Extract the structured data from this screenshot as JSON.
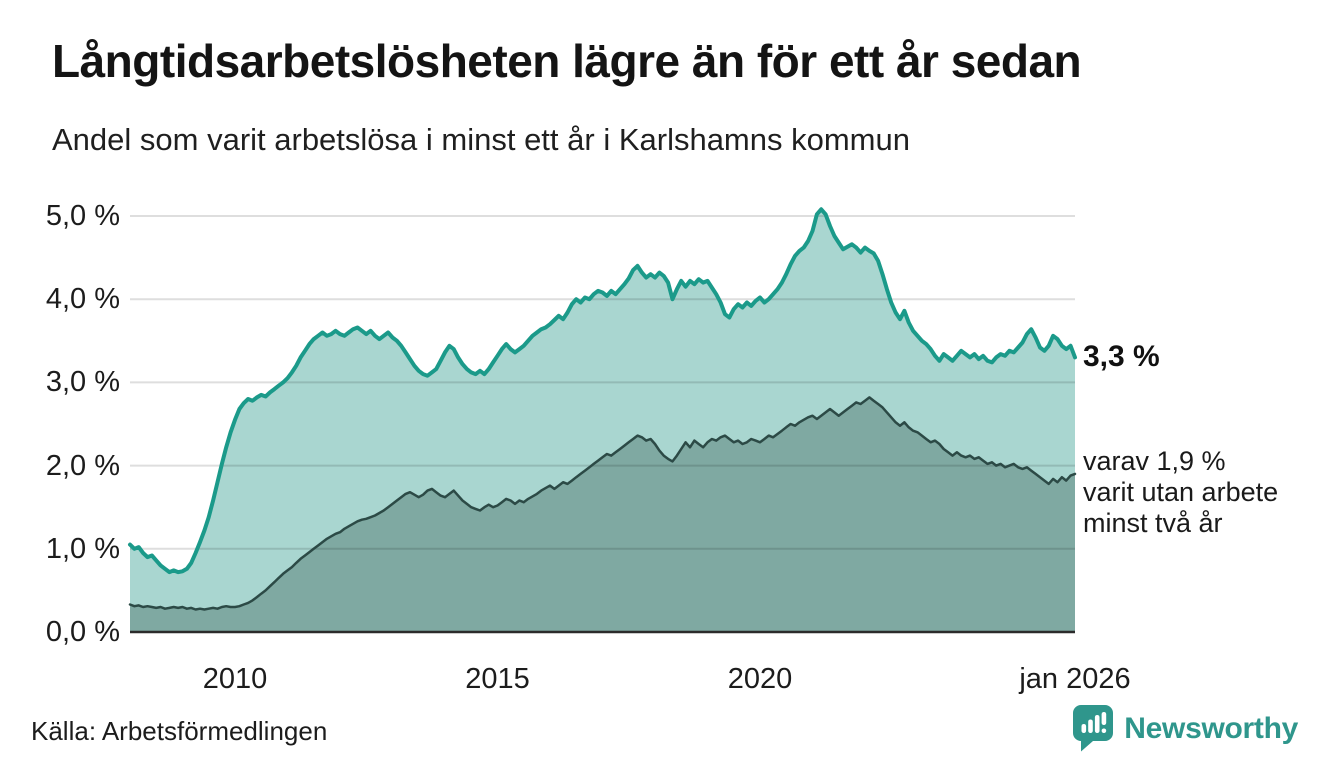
{
  "header": {},
  "chart_data": {
    "type": "area",
    "title": "Långtidsarbetslösheten lägre än för ett år sedan",
    "subtitle": "Andel som varit arbetslösa i minst ett år i Karlshamns kommun",
    "x_start": 2008.0,
    "x_step_years": 0.0833333333,
    "xlim": [
      2008.0,
      2026.0
    ],
    "ylim": [
      0.0,
      5.0
    ],
    "grid": true,
    "yticks": [
      {
        "v": 5.0,
        "label": "5,0 %"
      },
      {
        "v": 4.0,
        "label": "4,0 %"
      },
      {
        "v": 3.0,
        "label": "3,0 %"
      },
      {
        "v": 2.0,
        "label": "2,0 %"
      },
      {
        "v": 1.0,
        "label": "1,0 %"
      },
      {
        "v": 0.0,
        "label": "0,0 %"
      }
    ],
    "xticks": [
      {
        "x": 2010,
        "label": "2010"
      },
      {
        "x": 2015,
        "label": "2015"
      },
      {
        "x": 2020,
        "label": "2020"
      },
      {
        "x": 2026,
        "label": "jan 2026"
      }
    ],
    "series": [
      {
        "name": "Andel som varit arbetslösa minst ett år",
        "line_color": "#1b9a8a",
        "fill_color": "#a9d6d0",
        "line_width": 4,
        "end_value": 3.3,
        "values": [
          1.05,
          1.0,
          1.02,
          0.95,
          0.9,
          0.92,
          0.86,
          0.8,
          0.76,
          0.72,
          0.74,
          0.72,
          0.73,
          0.76,
          0.83,
          0.95,
          1.08,
          1.22,
          1.38,
          1.58,
          1.8,
          2.02,
          2.22,
          2.4,
          2.55,
          2.68,
          2.75,
          2.8,
          2.78,
          2.82,
          2.85,
          2.83,
          2.88,
          2.92,
          2.96,
          3.0,
          3.05,
          3.12,
          3.2,
          3.3,
          3.38,
          3.46,
          3.52,
          3.56,
          3.6,
          3.56,
          3.58,
          3.62,
          3.58,
          3.56,
          3.6,
          3.64,
          3.66,
          3.62,
          3.58,
          3.62,
          3.56,
          3.52,
          3.56,
          3.6,
          3.54,
          3.5,
          3.44,
          3.36,
          3.28,
          3.2,
          3.14,
          3.1,
          3.08,
          3.12,
          3.16,
          3.26,
          3.36,
          3.44,
          3.4,
          3.3,
          3.22,
          3.16,
          3.12,
          3.1,
          3.14,
          3.1,
          3.16,
          3.24,
          3.32,
          3.4,
          3.46,
          3.4,
          3.36,
          3.4,
          3.44,
          3.5,
          3.56,
          3.6,
          3.64,
          3.66,
          3.7,
          3.75,
          3.8,
          3.76,
          3.84,
          3.94,
          4.0,
          3.96,
          4.02,
          4.0,
          4.06,
          4.1,
          4.08,
          4.04,
          4.1,
          4.06,
          4.12,
          4.18,
          4.25,
          4.35,
          4.4,
          4.32,
          4.26,
          4.3,
          4.26,
          4.32,
          4.28,
          4.2,
          4.0,
          4.12,
          4.22,
          4.15,
          4.22,
          4.18,
          4.24,
          4.2,
          4.22,
          4.14,
          4.06,
          3.96,
          3.82,
          3.78,
          3.88,
          3.94,
          3.9,
          3.96,
          3.92,
          3.98,
          4.02,
          3.96,
          4.0,
          4.06,
          4.12,
          4.2,
          4.3,
          4.42,
          4.52,
          4.58,
          4.62,
          4.7,
          4.82,
          5.02,
          5.08,
          5.02,
          4.88,
          4.76,
          4.68,
          4.6,
          4.63,
          4.66,
          4.62,
          4.56,
          4.62,
          4.58,
          4.55,
          4.46,
          4.3,
          4.12,
          3.96,
          3.84,
          3.76,
          3.86,
          3.72,
          3.62,
          3.56,
          3.5,
          3.46,
          3.4,
          3.32,
          3.26,
          3.34,
          3.3,
          3.26,
          3.32,
          3.38,
          3.34,
          3.3,
          3.34,
          3.28,
          3.32,
          3.26,
          3.24,
          3.3,
          3.34,
          3.32,
          3.38,
          3.36,
          3.42,
          3.48,
          3.58,
          3.64,
          3.54,
          3.42,
          3.38,
          3.44,
          3.56,
          3.52,
          3.44,
          3.4,
          3.44,
          3.3
        ]
      },
      {
        "name": "Varav utan arbete minst två år",
        "line_color": "#2c4a46",
        "fill_color": "#7fa9a2",
        "line_width": 2.5,
        "end_value": 1.9,
        "values": [
          0.33,
          0.31,
          0.32,
          0.3,
          0.31,
          0.3,
          0.29,
          0.3,
          0.28,
          0.29,
          0.3,
          0.29,
          0.3,
          0.28,
          0.29,
          0.27,
          0.28,
          0.27,
          0.28,
          0.29,
          0.28,
          0.3,
          0.31,
          0.3,
          0.3,
          0.31,
          0.33,
          0.35,
          0.38,
          0.42,
          0.46,
          0.5,
          0.55,
          0.6,
          0.65,
          0.7,
          0.74,
          0.78,
          0.83,
          0.88,
          0.92,
          0.96,
          1.0,
          1.04,
          1.08,
          1.12,
          1.15,
          1.18,
          1.2,
          1.24,
          1.27,
          1.3,
          1.33,
          1.35,
          1.36,
          1.38,
          1.4,
          1.43,
          1.46,
          1.5,
          1.54,
          1.58,
          1.62,
          1.66,
          1.68,
          1.65,
          1.62,
          1.65,
          1.7,
          1.72,
          1.68,
          1.64,
          1.62,
          1.66,
          1.7,
          1.64,
          1.58,
          1.54,
          1.5,
          1.48,
          1.46,
          1.5,
          1.53,
          1.5,
          1.52,
          1.56,
          1.6,
          1.58,
          1.54,
          1.58,
          1.56,
          1.6,
          1.63,
          1.66,
          1.7,
          1.73,
          1.76,
          1.72,
          1.76,
          1.8,
          1.78,
          1.82,
          1.86,
          1.9,
          1.94,
          1.98,
          2.02,
          2.06,
          2.1,
          2.14,
          2.12,
          2.16,
          2.2,
          2.24,
          2.28,
          2.32,
          2.36,
          2.34,
          2.3,
          2.32,
          2.26,
          2.18,
          2.12,
          2.08,
          2.05,
          2.12,
          2.2,
          2.28,
          2.22,
          2.3,
          2.26,
          2.22,
          2.28,
          2.32,
          2.3,
          2.34,
          2.36,
          2.32,
          2.28,
          2.3,
          2.26,
          2.28,
          2.32,
          2.3,
          2.28,
          2.32,
          2.36,
          2.34,
          2.38,
          2.42,
          2.46,
          2.5,
          2.48,
          2.52,
          2.55,
          2.58,
          2.6,
          2.56,
          2.6,
          2.64,
          2.68,
          2.64,
          2.6,
          2.64,
          2.68,
          2.72,
          2.76,
          2.74,
          2.78,
          2.82,
          2.78,
          2.74,
          2.7,
          2.64,
          2.58,
          2.52,
          2.48,
          2.52,
          2.46,
          2.42,
          2.4,
          2.36,
          2.32,
          2.28,
          2.3,
          2.26,
          2.2,
          2.16,
          2.12,
          2.16,
          2.12,
          2.1,
          2.12,
          2.08,
          2.1,
          2.06,
          2.02,
          2.04,
          2.0,
          2.02,
          1.98,
          2.0,
          2.02,
          1.98,
          1.96,
          1.98,
          1.94,
          1.9,
          1.86,
          1.82,
          1.78,
          1.84,
          1.8,
          1.86,
          1.82,
          1.88,
          1.9
        ]
      }
    ]
  },
  "annotations": {
    "primary": "3,3 %",
    "secondary_line1": "varav 1,9 %",
    "secondary_line2": "varit utan arbete",
    "secondary_line3": "minst två år"
  },
  "footer": {
    "source": "Källa: Arbetsförmedlingen",
    "brand": "Newsworthy"
  },
  "colors": {
    "accent_teal": "#1b9a8a",
    "light_fill": "#a9d6d0",
    "dark_fill": "#7fa9a2",
    "dark_line": "#2c4a46",
    "grid": "rgba(0,0,0,0.13)",
    "baseline": "#2b2b2b",
    "brand_teal": "#2f968c",
    "text": "#1a1a1a"
  }
}
